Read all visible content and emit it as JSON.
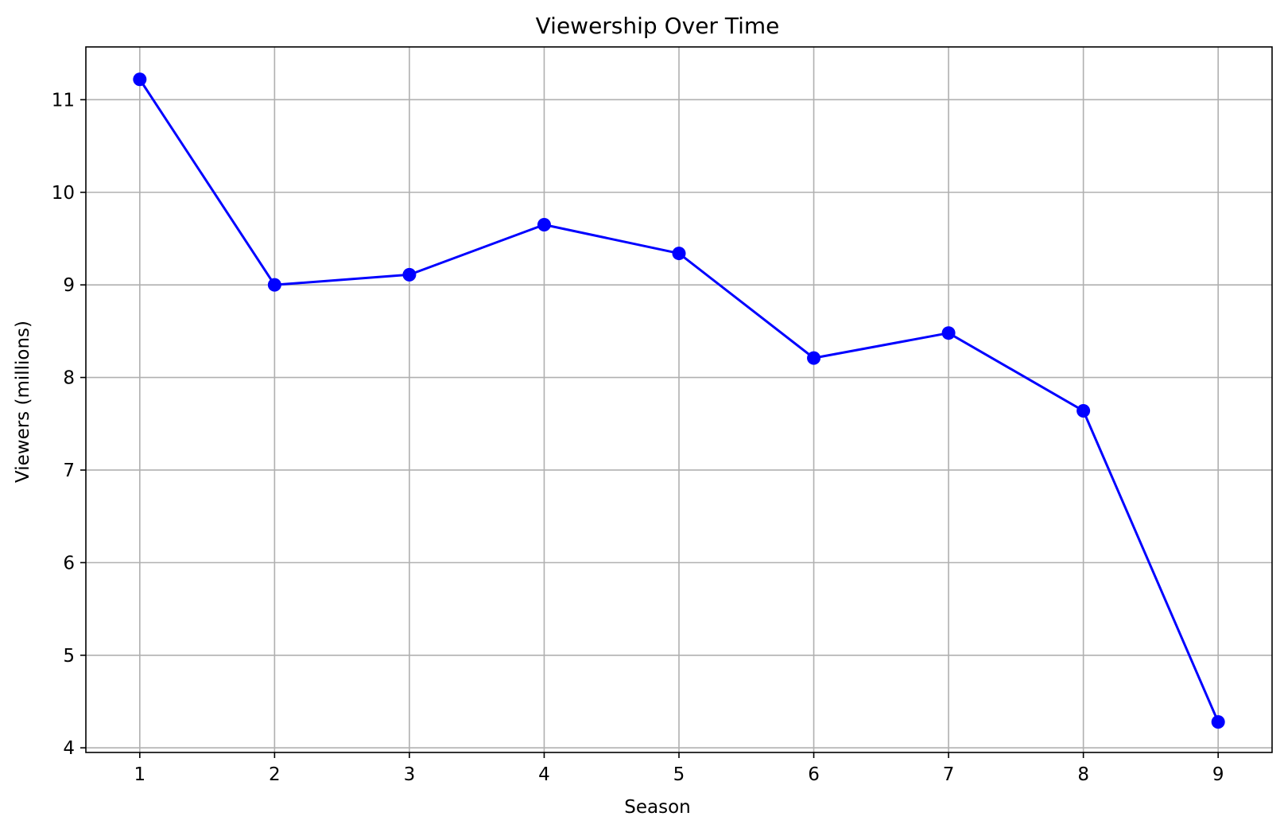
{
  "chart_data": {
    "type": "line",
    "title": "Viewership Over Time",
    "xlabel": "Season",
    "ylabel": "Viewers (millions)",
    "x": [
      1,
      2,
      3,
      4,
      5,
      6,
      7,
      8,
      9
    ],
    "series": [
      {
        "values": [
          11.22,
          9.0,
          9.11,
          9.65,
          9.34,
          8.21,
          8.48,
          7.64,
          4.28
        ],
        "color": "#0000ff",
        "marker": "circle"
      }
    ],
    "xticks": [
      1,
      2,
      3,
      4,
      5,
      6,
      7,
      8,
      9
    ],
    "yticks": [
      4,
      5,
      6,
      7,
      8,
      9,
      10,
      11
    ],
    "xlim": [
      0.6,
      9.4
    ],
    "ylim": [
      3.95,
      11.57
    ],
    "grid": true,
    "grid_color": "#b0b0b0"
  }
}
